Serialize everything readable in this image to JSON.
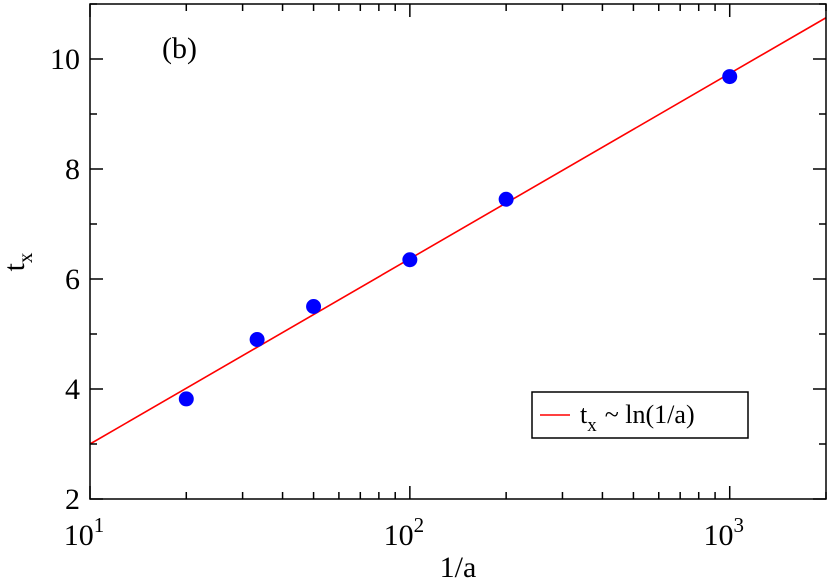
{
  "chart_data": {
    "type": "scatter",
    "panel_label": "(b)",
    "xlabel": "1/a",
    "ylabel": {
      "base": "t",
      "sub": "x"
    },
    "xscale": "log",
    "xlim": [
      10,
      2000
    ],
    "ylim": [
      2,
      11
    ],
    "x_ticks": [
      {
        "value": 10,
        "base": "10",
        "exp": "1"
      },
      {
        "value": 100,
        "base": "10",
        "exp": "2"
      },
      {
        "value": 1000,
        "base": "10",
        "exp": "3"
      }
    ],
    "y_ticks": [
      {
        "value": 2,
        "label": "2"
      },
      {
        "value": 4,
        "label": "4"
      },
      {
        "value": 6,
        "label": "6"
      },
      {
        "value": 8,
        "label": "8"
      },
      {
        "value": 10,
        "label": "10"
      }
    ],
    "grid": false,
    "legend_position": "bottom-right",
    "series": [
      {
        "kind": "scatter",
        "color": "#0000ff",
        "marker": "circle",
        "points": [
          {
            "x": 20,
            "y": 3.82
          },
          {
            "x": 33.3,
            "y": 4.9
          },
          {
            "x": 50,
            "y": 5.5
          },
          {
            "x": 100,
            "y": 6.35
          },
          {
            "x": 200,
            "y": 7.45
          },
          {
            "x": 1000,
            "y": 9.68
          }
        ]
      },
      {
        "kind": "line",
        "color": "#ff0000",
        "legend": {
          "t": "t",
          "sub": "x",
          "rest": "~ ln(1/a)"
        },
        "points": [
          {
            "x": 10,
            "y": 3.0
          },
          {
            "x": 2000,
            "y": 10.75
          }
        ]
      }
    ]
  }
}
